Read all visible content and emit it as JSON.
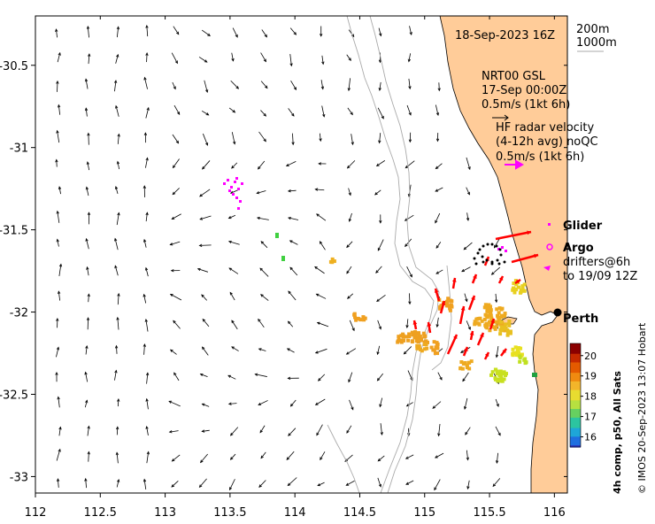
{
  "map": {
    "date_label": "18-Sep-2023 16Z",
    "depth_labels": [
      "200m",
      "1000m"
    ],
    "model_label": [
      "NRT00 GSL",
      "17-Sep 00:00Z",
      "0.5m/s (1kt 6h)"
    ],
    "radar_label": [
      "HF radar velocity",
      "(4-12h avg) noQC",
      "0.5m/s (1kt 6h)"
    ],
    "legend": {
      "glider": "Glider",
      "argo": "Argo",
      "drifters": [
        "drifters@6h",
        "to 19/09 12Z"
      ]
    },
    "place": "Perth",
    "credit": "© IMOS 20-Sep-2023 13:07 Hobart",
    "colorbar": {
      "title": "4h comp, p50, All Sats",
      "ticks": [
        "20",
        "19",
        "18",
        "17",
        "16"
      ],
      "range": [
        15.5,
        20.6
      ]
    },
    "x_ticks": [
      "112",
      "112.5",
      "113",
      "113.5",
      "114",
      "114.5",
      "115",
      "115.5",
      "116"
    ],
    "y_ticks": [
      "-30.5",
      "-31",
      "-31.5",
      "-32",
      "-32.5",
      "-33"
    ],
    "lon_range": [
      112,
      116.1
    ],
    "lat_range": [
      -33.1,
      -30.2
    ],
    "colors": {
      "land": "#ffcc99",
      "radar_arrow": "#ff0000",
      "glider": "#ff00ff",
      "argo": "#ff00ff",
      "drifter": "#ff00ff",
      "bathy": "#aaaaaa"
    }
  }
}
